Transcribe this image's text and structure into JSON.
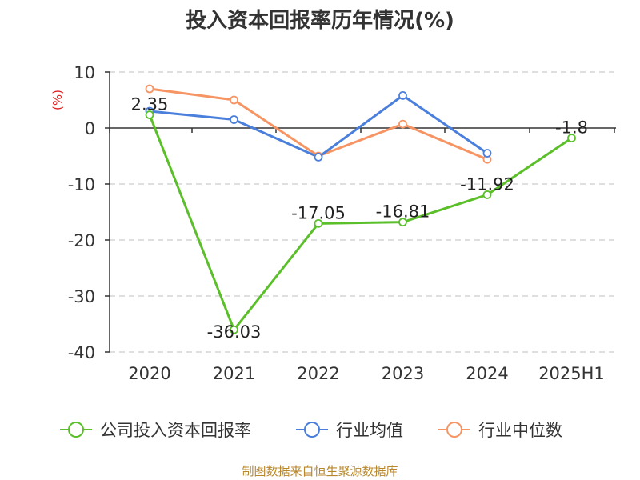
{
  "title": "投入资本回报率历年情况(%)",
  "source": "制图数据来自恒生聚源数据库",
  "colors": {
    "company": "#5bbf2a",
    "avg": "#4a7fdc",
    "median": "#f79463",
    "unit": "#e02020",
    "grid": "#cccccc",
    "axis": "#333333"
  },
  "chart_data": {
    "type": "line",
    "categories": [
      "2020",
      "2021",
      "2022",
      "2023",
      "2024",
      "2025H1"
    ],
    "ylabel": "(%)",
    "ylim": [
      -40,
      10
    ],
    "yticks": [
      "10",
      "0",
      "-10",
      "-20",
      "-30",
      "-40"
    ],
    "grid": "horizontal dashed",
    "legend_position": "bottom",
    "series": [
      {
        "name": "公司投入资本回报率",
        "key": "company",
        "values": [
          2.35,
          -36.03,
          -17.05,
          -16.81,
          -11.92,
          -1.8
        ],
        "labels": [
          "2.35",
          "-36.03",
          "-17.05",
          "-16.81",
          "-11.92",
          "-1.8"
        ]
      },
      {
        "name": "行业均值",
        "key": "avg",
        "values": [
          3.0,
          1.5,
          -5.2,
          5.8,
          -4.5,
          null
        ]
      },
      {
        "name": "行业中位数",
        "key": "median",
        "values": [
          7.0,
          5.0,
          -5.0,
          0.7,
          -5.6,
          null
        ]
      }
    ]
  }
}
